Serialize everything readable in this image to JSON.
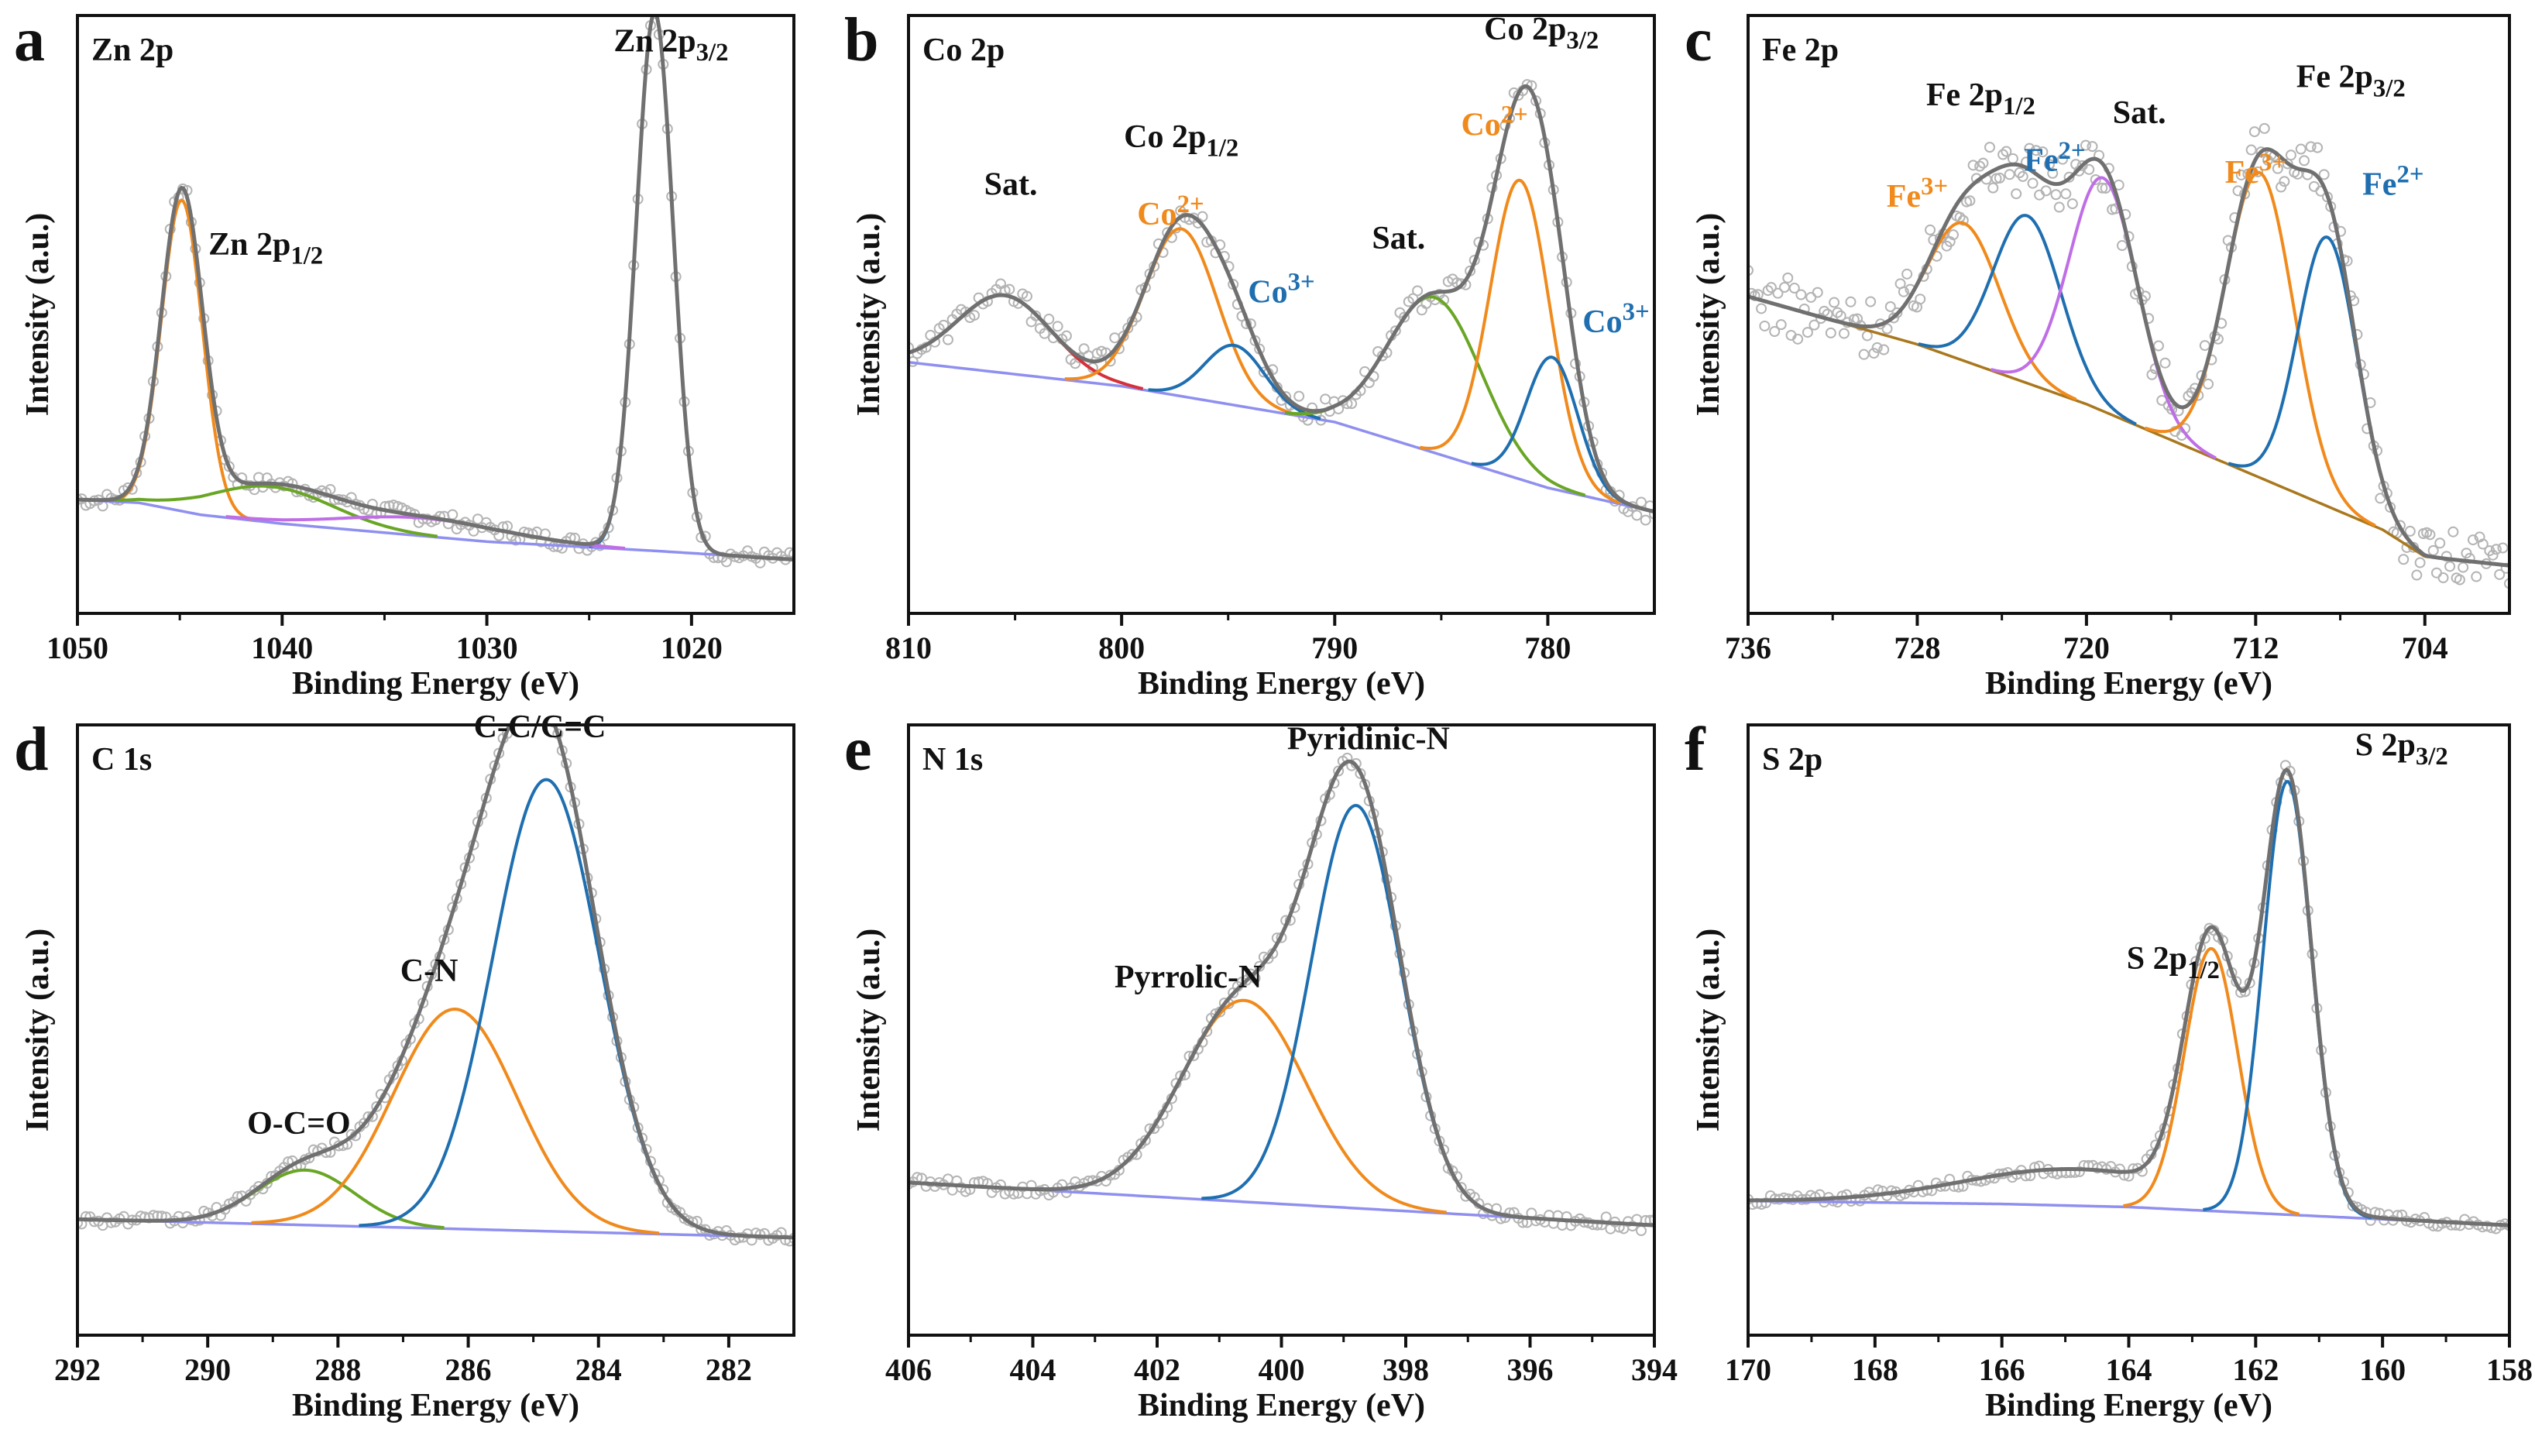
{
  "figure": {
    "colors": {
      "gray": "#707070",
      "scatter": "#b4b4b4",
      "blue": "#1f6fb0",
      "orange": "#f08a1c",
      "green": "#6aa625",
      "red": "#d6303a",
      "purple": "#bf6ee6",
      "baseline": "#8f8ff0",
      "fe_baseline": "#a9781e",
      "blue_text": "#1f6fb0",
      "orange_text": "#f08a1c"
    }
  },
  "chart_data": [
    {
      "panel": "a",
      "type": "line",
      "title": "Zn 2p",
      "xlabel": "Binding Energy (eV)",
      "ylabel": "Intensity (a.u.)",
      "xlim": [
        1050,
        1015
      ],
      "ylim": [
        0,
        100
      ],
      "xticks": [
        1050,
        1040,
        1030,
        1020
      ],
      "baseline": [
        [
          1050,
          19.0
        ],
        [
          1047,
          18.5
        ],
        [
          1044,
          16.5
        ],
        [
          1040,
          15.0
        ],
        [
          1030,
          12.0
        ],
        [
          1022,
          10.5
        ],
        [
          1015,
          9.0
        ]
      ],
      "components": [
        {
          "name": "Zn 2p1/2",
          "color": "orange",
          "center": 1044.9,
          "height": 52,
          "width": 1.0
        },
        {
          "name": "Zn 2p3/2",
          "color": "blue",
          "center": 1021.8,
          "height": 90,
          "width": 0.9
        },
        {
          "name": "satellite",
          "color": "green",
          "center": 1040.5,
          "height": 6,
          "width": 3.0
        },
        {
          "name": "satellite",
          "color": "purple",
          "center": 1033.0,
          "height": 3,
          "width": 4.0
        }
      ],
      "annotations": [
        {
          "text": "Zn 2p3/2",
          "x": 1021.0,
          "y": 94,
          "color": "dark"
        },
        {
          "text": "Zn  2p1/2",
          "x": 1040.8,
          "y": 60,
          "color": "dark"
        }
      ]
    },
    {
      "panel": "b",
      "type": "line",
      "title": "Co 2p",
      "xlabel": "Binding Energy (eV)",
      "ylabel": "Intensity (a.u.)",
      "xlim": [
        810,
        775
      ],
      "ylim": [
        0,
        100
      ],
      "xticks": [
        810,
        800,
        790,
        780
      ],
      "baseline": [
        [
          810,
          42
        ],
        [
          800,
          38
        ],
        [
          790,
          32
        ],
        [
          780,
          21
        ],
        [
          775,
          17
        ]
      ],
      "components": [
        {
          "name": "Sat.",
          "color": "red",
          "center": 805.5,
          "height": 13,
          "width": 2.2
        },
        {
          "name": "Co2+",
          "color": "orange",
          "center": 797.2,
          "height": 28,
          "width": 1.7
        },
        {
          "name": "Co3+",
          "color": "blue",
          "center": 794.7,
          "height": 10,
          "width": 1.4
        },
        {
          "name": "Sat.",
          "color": "green",
          "center": 785.3,
          "height": 26,
          "width": 2.2
        },
        {
          "name": "Co2+",
          "color": "orange",
          "center": 781.3,
          "height": 50,
          "width": 1.4
        },
        {
          "name": "Co3+",
          "color": "blue",
          "center": 779.8,
          "height": 22,
          "width": 1.2
        }
      ],
      "annotations": [
        {
          "text": "Sat.",
          "x": 805.2,
          "y": 70,
          "color": "dark"
        },
        {
          "text": "Co 2p1/2",
          "x": 797.2,
          "y": 78,
          "color": "dark"
        },
        {
          "text": "Co2+",
          "x": 797.7,
          "y": 65,
          "color": "orange"
        },
        {
          "text": "Co3+",
          "x": 792.5,
          "y": 52,
          "color": "blue"
        },
        {
          "text": "Sat.",
          "x": 787.0,
          "y": 61,
          "color": "dark"
        },
        {
          "text": "Co 2p3/2",
          "x": 780.3,
          "y": 96,
          "color": "dark"
        },
        {
          "text": "Co2+",
          "x": 782.5,
          "y": 80,
          "color": "orange"
        },
        {
          "text": "Co3+",
          "x": 776.8,
          "y": 47,
          "color": "blue"
        }
      ]
    },
    {
      "panel": "c",
      "type": "line",
      "title": "Fe 2p",
      "xlabel": "Binding Energy (eV)",
      "ylabel": "Intensity (a.u.)",
      "xlim": [
        736,
        700
      ],
      "ylim": [
        0,
        100
      ],
      "xticks": [
        736,
        728,
        720,
        712,
        704
      ],
      "baseline": [
        [
          736,
          53
        ],
        [
          728,
          45
        ],
        [
          720,
          35
        ],
        [
          712,
          23
        ],
        [
          706,
          14
        ],
        [
          704,
          9.5
        ],
        [
          700,
          8
        ]
      ],
      "components": [
        {
          "name": "Fe3+",
          "color": "orange",
          "center": 725.8,
          "height": 23,
          "width": 1.7
        },
        {
          "name": "Fe2+",
          "color": "blue",
          "center": 722.8,
          "height": 28,
          "width": 1.6
        },
        {
          "name": "Sat.",
          "color": "purple",
          "center": 719.2,
          "height": 39,
          "width": 1.6
        },
        {
          "name": "Fe3+",
          "color": "orange",
          "center": 711.8,
          "height": 51,
          "width": 1.6
        },
        {
          "name": "Fe2+",
          "color": "blue",
          "center": 708.6,
          "height": 45,
          "width": 1.4
        }
      ],
      "annotations": [
        {
          "text": "Fe 2p1/2",
          "x": 725.0,
          "y": 85,
          "color": "dark"
        },
        {
          "text": "Fe3+",
          "x": 728.0,
          "y": 68,
          "color": "orange"
        },
        {
          "text": "Fe2+",
          "x": 721.5,
          "y": 74,
          "color": "blue"
        },
        {
          "text": "Sat.",
          "x": 717.5,
          "y": 82,
          "color": "dark"
        },
        {
          "text": "Fe 2p3/2",
          "x": 707.5,
          "y": 88,
          "color": "dark"
        },
        {
          "text": "Fe3+",
          "x": 712.0,
          "y": 72,
          "color": "orange"
        },
        {
          "text": "Fe2+",
          "x": 705.5,
          "y": 70,
          "color": "blue"
        }
      ]
    },
    {
      "panel": "d",
      "type": "line",
      "title": "C 1s",
      "xlabel": "Binding Energy (eV)",
      "ylabel": "Intensity (a.u.)",
      "xlim": [
        292,
        281
      ],
      "ylim": [
        0,
        100
      ],
      "xticks": [
        292,
        290,
        288,
        286,
        284,
        282
      ],
      "baseline": [
        [
          292,
          19
        ],
        [
          281,
          16
        ]
      ],
      "components": [
        {
          "name": "O-C=O",
          "color": "green",
          "center": 288.5,
          "height": 9,
          "width": 0.75
        },
        {
          "name": "C-N",
          "color": "orange",
          "center": 286.2,
          "height": 36,
          "width": 0.95
        },
        {
          "name": "C-C/C=C",
          "color": "blue",
          "center": 284.8,
          "height": 74,
          "width": 0.82
        }
      ],
      "annotations": [
        {
          "text": "O-C=O",
          "x": 288.6,
          "y": 33,
          "color": "dark"
        },
        {
          "text": "C-N",
          "x": 286.6,
          "y": 58,
          "color": "dark"
        },
        {
          "text": "C-C/C=C",
          "x": 284.9,
          "y": 98,
          "color": "dark"
        }
      ]
    },
    {
      "panel": "e",
      "type": "line",
      "title": "N 1s",
      "xlabel": "Binding Energy (eV)",
      "ylabel": "Intensity (a.u.)",
      "xlim": [
        406,
        394
      ],
      "ylim": [
        0,
        100
      ],
      "xticks": [
        406,
        404,
        402,
        400,
        398,
        396,
        394
      ],
      "baseline": [
        [
          406,
          25
        ],
        [
          394,
          18
        ]
      ],
      "components": [
        {
          "name": "Pyrrolic-N",
          "color": "orange",
          "center": 400.6,
          "height": 33,
          "width": 1.0
        },
        {
          "name": "Pyridinic-N",
          "color": "blue",
          "center": 398.8,
          "height": 66,
          "width": 0.72
        }
      ],
      "annotations": [
        {
          "text": "Pyrrolic-N",
          "x": 401.5,
          "y": 57,
          "color": "dark"
        },
        {
          "text": "Pyridinic-N",
          "x": 398.6,
          "y": 96,
          "color": "dark"
        }
      ]
    },
    {
      "panel": "f",
      "type": "line",
      "title": "S 2p",
      "xlabel": "Binding Energy (eV)",
      "ylabel": "Intensity (a.u.)",
      "xlim": [
        170,
        158
      ],
      "ylim": [
        0,
        100
      ],
      "xticks": [
        170,
        168,
        166,
        164,
        162,
        160,
        158
      ],
      "baseline": [
        [
          170,
          22
        ],
        [
          166,
          21.5
        ],
        [
          164,
          21
        ],
        [
          162,
          20
        ],
        [
          160,
          19
        ],
        [
          158,
          18
        ]
      ],
      "components": [
        {
          "name": "S 2p1/2",
          "color": "orange",
          "center": 162.7,
          "height": 43,
          "width": 0.42
        },
        {
          "name": "S 2p3/2",
          "color": "blue",
          "center": 161.5,
          "height": 71,
          "width": 0.38
        },
        {
          "name": "tail",
          "color": "none",
          "center": 164.8,
          "height": 6,
          "width": 1.8
        }
      ],
      "annotations": [
        {
          "text": "S 2p1/2",
          "x": 163.3,
          "y": 60,
          "color": "dark"
        },
        {
          "text": "S 2p3/2",
          "x": 159.7,
          "y": 95,
          "color": "dark"
        }
      ]
    }
  ]
}
